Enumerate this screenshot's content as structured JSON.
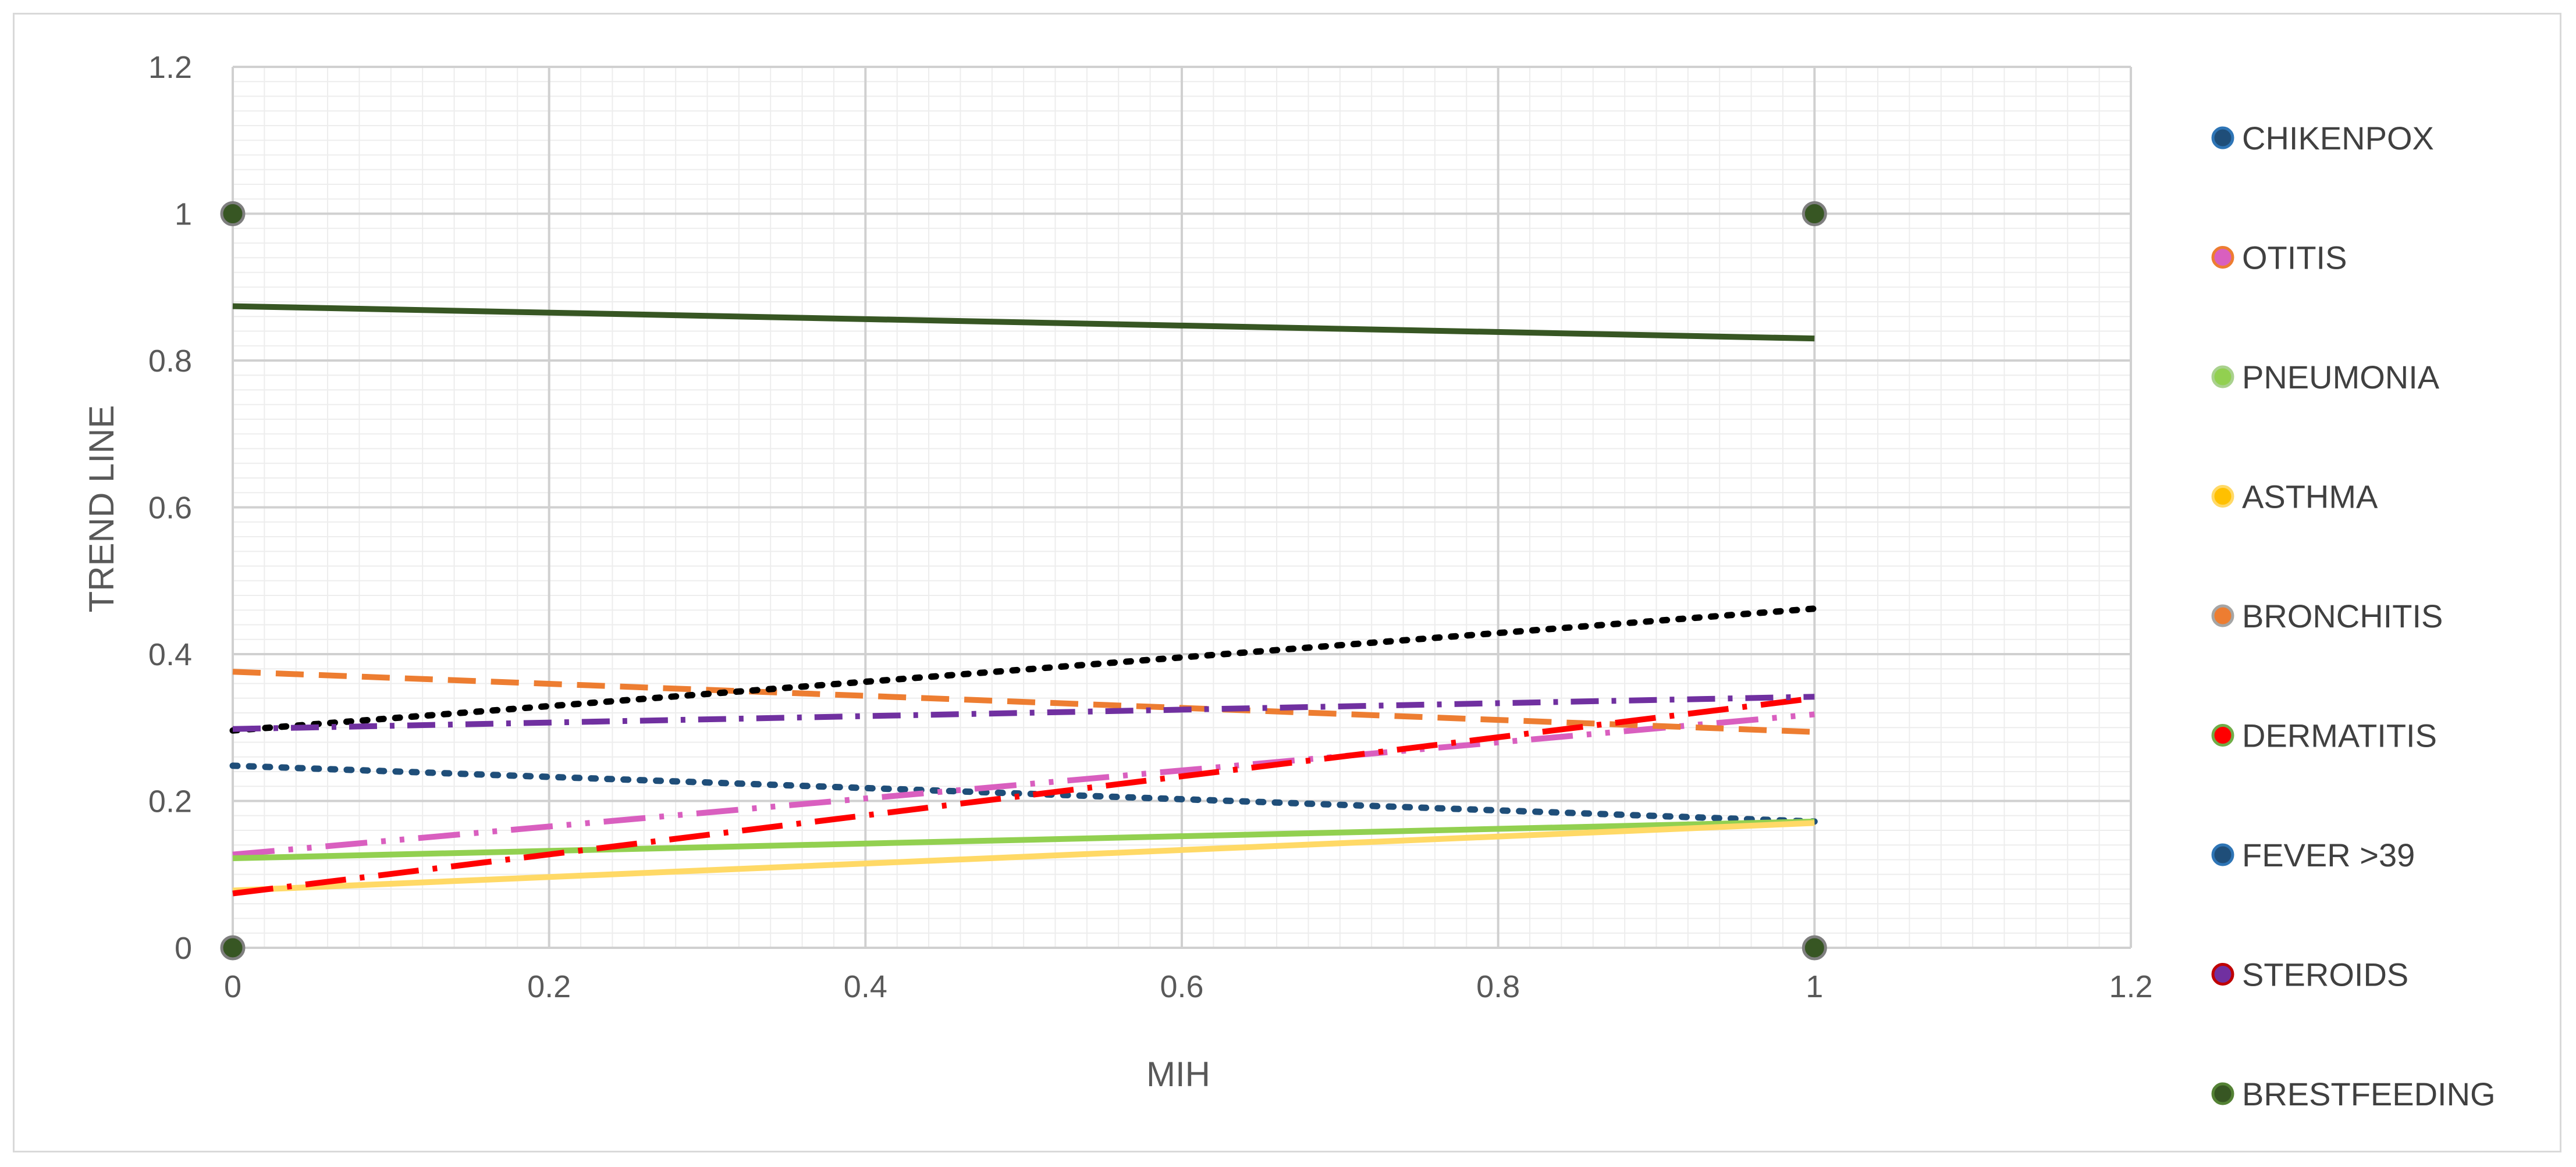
{
  "chart_data": {
    "type": "scatter",
    "title": "",
    "xlabel": "MIH",
    "ylabel": "TREND LINE",
    "xlim": [
      0,
      1.2
    ],
    "ylim": [
      0,
      1.2
    ],
    "x_ticks": [
      "0",
      "0.2",
      "0.4",
      "0.6",
      "0.8",
      "1",
      "1.2"
    ],
    "y_ticks": [
      "0",
      "0.2",
      "0.4",
      "0.6",
      "0.8",
      "1",
      "1.2"
    ],
    "grid": true,
    "minor_grid": true,
    "legend_position": "right",
    "points": [
      {
        "x": 0,
        "y": 1
      },
      {
        "x": 1,
        "y": 1
      },
      {
        "x": 0,
        "y": 0
      },
      {
        "x": 1,
        "y": 0
      }
    ],
    "point_color": "#375623",
    "series": [
      {
        "name": "CHIKENPOX",
        "color": "#1f4e79",
        "trendline": [
          [
            0,
            0.248
          ],
          [
            1,
            0.172
          ]
        ],
        "dash": "dot"
      },
      {
        "name": "OTITIS",
        "color": "#d95fbf",
        "trendline": [
          [
            0,
            0.127
          ],
          [
            1,
            0.318
          ]
        ],
        "dash": "long-dash-dot-dot"
      },
      {
        "name": "PNEUMONIA",
        "color": "#92d050",
        "trendline": [
          [
            0,
            0.122
          ],
          [
            1,
            0.172
          ]
        ],
        "dash": "solid"
      },
      {
        "name": "ASTHMA",
        "color": "#ffd966",
        "trendline": [
          [
            0,
            0.078
          ],
          [
            1,
            0.17
          ]
        ],
        "dash": "solid"
      },
      {
        "name": "BRONCHITIS",
        "color": "#ed7d31",
        "trendline": [
          [
            0,
            0.376
          ],
          [
            1,
            0.294
          ]
        ],
        "dash": "dash"
      },
      {
        "name": "DERMATITIS",
        "color": "#ff0000",
        "trendline": [
          [
            0,
            0.074
          ],
          [
            1,
            0.34
          ]
        ],
        "dash": "long-dash-dot"
      },
      {
        "name": "FEVER >39",
        "color": "#000000",
        "trendline": [
          [
            0,
            0.296
          ],
          [
            1,
            0.462
          ]
        ],
        "dash": "dot"
      },
      {
        "name": "STEROIDS",
        "color": "#7030a0",
        "trendline": [
          [
            0,
            0.298
          ],
          [
            1,
            0.342
          ]
        ],
        "dash": "dash-dot"
      },
      {
        "name": "BRESTFEEDING",
        "color": "#375623",
        "trendline": [
          [
            0,
            0.874
          ],
          [
            1,
            0.83
          ]
        ],
        "dash": "solid"
      }
    ],
    "legend": [
      {
        "label": "CHIKENPOX",
        "fill": "#1f4e79",
        "stroke": "#2e75b6"
      },
      {
        "label": "OTITIS",
        "fill": "#d95fbf",
        "stroke": "#ed7d31"
      },
      {
        "label": "PNEUMONIA",
        "fill": "#92d050",
        "stroke": "#a9d18e"
      },
      {
        "label": "ASTHMA",
        "fill": "#ffc000",
        "stroke": "#ffd966"
      },
      {
        "label": "BRONCHITIS",
        "fill": "#ed7d31",
        "stroke": "#a5a5a5"
      },
      {
        "label": "DERMATITIS",
        "fill": "#ff0000",
        "stroke": "#70ad47"
      },
      {
        "label": "FEVER >39",
        "fill": "#1f4e79",
        "stroke": "#2e75b6"
      },
      {
        "label": "STEROIDS",
        "fill": "#7030a0",
        "stroke": "#c00000"
      },
      {
        "label": "BRESTFEEDING",
        "fill": "#375623",
        "stroke": "#548235"
      }
    ]
  }
}
